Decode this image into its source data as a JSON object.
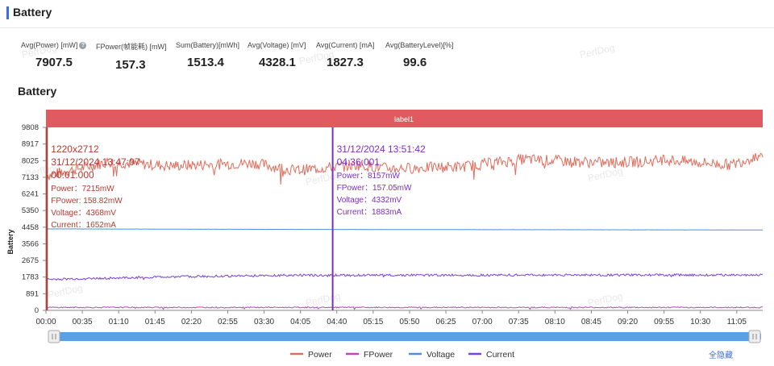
{
  "panel": {
    "title": "Battery"
  },
  "stats": [
    {
      "label": "Avg(Power) [mW]",
      "value": "7907.5",
      "help": true
    },
    {
      "label": "FPower(帧能耗) [mW]",
      "value": "157.3"
    },
    {
      "label": "Sum(Battery)[mWh]",
      "value": "1513.4"
    },
    {
      "label": "Avg(Voltage) [mV]",
      "value": "4328.1"
    },
    {
      "label": "Avg(Current) [mA]",
      "value": "1827.3"
    },
    {
      "label": "Avg(BatteryLevel)[%]",
      "value": "99.6"
    }
  ],
  "watermark": "PerfDog",
  "section_title": "Battery",
  "hide_all": "全隐藏",
  "chart_data": {
    "type": "line",
    "title": "Battery",
    "ylabel": "Battery",
    "label_band": "label1",
    "ylim": [
      0,
      9808
    ],
    "y_ticks": [
      "0",
      "891",
      "1783",
      "2675",
      "3566",
      "4458",
      "5350",
      "6241",
      "7133",
      "8025",
      "8917",
      "9808"
    ],
    "x_ticks": [
      "00:00",
      "00:35",
      "01:10",
      "01:45",
      "02:20",
      "02:55",
      "03:30",
      "04:05",
      "04:40",
      "05:15",
      "05:50",
      "06:25",
      "07:00",
      "07:35",
      "08:10",
      "08:45",
      "09:20",
      "09:55",
      "10:30",
      "11:05"
    ],
    "x_range_seconds": [
      0,
      690
    ],
    "series": [
      {
        "name": "Power",
        "color": "#e06c5b",
        "base": 7908,
        "noise": 300,
        "x": [
          0,
          60,
          120,
          200,
          240,
          300,
          330,
          400,
          460,
          540,
          600,
          660,
          690
        ],
        "values": [
          7215,
          7950,
          7750,
          7900,
          7500,
          7800,
          7600,
          7700,
          8100,
          7900,
          8050,
          7800,
          8400
        ]
      },
      {
        "name": "FPower",
        "color": "#c042c0",
        "base": 157,
        "noise": 30,
        "x": [
          0,
          690
        ],
        "values": [
          158.82,
          157.05
        ]
      },
      {
        "name": "Voltage",
        "color": "#4a90e2",
        "base": 4328,
        "noise": 3,
        "x": [
          0,
          230,
          690
        ],
        "values": [
          4368,
          4340,
          4310
        ]
      },
      {
        "name": "Current",
        "color": "#7b3fe0",
        "base": 1827,
        "noise": 60,
        "x": [
          0,
          120,
          230,
          690
        ],
        "values": [
          1652,
          1800,
          1883,
          1900
        ]
      }
    ],
    "markers": [
      {
        "t": 1,
        "color": "#b23a2f",
        "lines": [
          "1220x2712",
          "31/12/2024 13:47:07",
          "00:01:000",
          "Power：7215mW",
          "FPower: 158.82mW",
          "Voltage：4368mV",
          "Current：1652mA"
        ]
      },
      {
        "t": 276,
        "color": "#7b2fc0",
        "lines": [
          "31/12/2024 13:51:42",
          "04:36:001",
          "Power：8157mW",
          "FPower：157.05mW",
          "Voltage：4332mV",
          "Current：1883mA"
        ]
      }
    ],
    "legend_position": "bottom-center",
    "grid": false
  }
}
